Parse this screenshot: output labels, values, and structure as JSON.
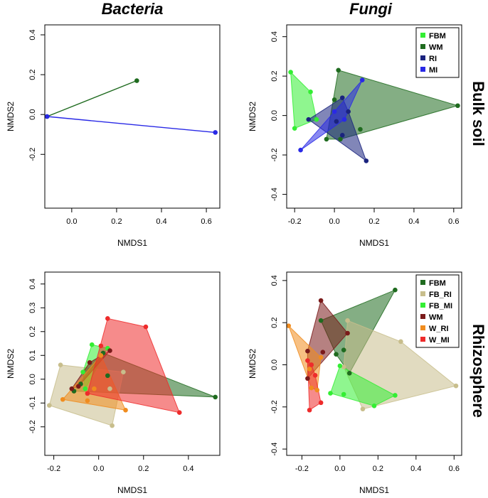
{
  "column_titles": [
    "Bacteria",
    "Fungi"
  ],
  "row_titles": [
    "Bulk soil",
    "Rhizosphere"
  ],
  "colors": {
    "FBM_bulk": "#33ee33",
    "WM_bulk": "#1f6b1f",
    "RI_bulk": "#1a237e",
    "MI_bulk": "#2929e6",
    "FBM": "#1f6b1f",
    "FB_RI": "#c8be8c",
    "FB_MI": "#33ee33",
    "WM": "#7a1a1a",
    "W_RI": "#f08c1e",
    "W_MI": "#ee2b2b"
  },
  "chart_data": [
    {
      "id": "bacteria-bulk",
      "type": "scatter",
      "title": "Bacteria",
      "row": "Bulk soil",
      "xlabel": "NMDS1",
      "ylabel": "NMDS2",
      "xlim": [
        -0.12,
        0.66
      ],
      "ylim": [
        -0.47,
        0.45
      ],
      "xticks": [
        0.0,
        0.2,
        0.4,
        0.6
      ],
      "xtick_labels": [
        "0.0",
        "0.2",
        "0.4",
        "0.6"
      ],
      "yticks": [
        -0.2,
        0.0,
        0.2,
        0.4
      ],
      "ytick_labels": [
        "-0.2",
        "0.0",
        "0.2",
        "0.4"
      ],
      "legend": null,
      "series": [
        {
          "name": "WM",
          "color_key": "WM_bulk",
          "points": [
            [
              -0.11,
              -0.01
            ],
            [
              0.29,
              0.17
            ]
          ]
        },
        {
          "name": "MI",
          "color_key": "MI_bulk",
          "points": [
            [
              -0.11,
              -0.01
            ],
            [
              0.64,
              -0.09
            ]
          ]
        }
      ]
    },
    {
      "id": "fungi-bulk",
      "type": "scatter",
      "title": "Fungi",
      "row": "Bulk soil",
      "xlabel": "NMDS1",
      "ylabel": "NMDS2",
      "xlim": [
        -0.24,
        0.64
      ],
      "ylim": [
        -0.47,
        0.46
      ],
      "xticks": [
        -0.2,
        0.0,
        0.2,
        0.4,
        0.6
      ],
      "xtick_labels": [
        "-0.2",
        "0.0",
        "0.2",
        "0.4",
        "0.6"
      ],
      "yticks": [
        -0.4,
        -0.2,
        0.0,
        0.2,
        0.4
      ],
      "ytick_labels": [
        "-0.4",
        "-0.2",
        "0.0",
        "0.2",
        "0.4"
      ],
      "legend": "top-right",
      "series": [
        {
          "name": "FBM",
          "color_key": "FBM_bulk",
          "points": [
            [
              -0.22,
              0.22
            ],
            [
              -0.12,
              0.12
            ],
            [
              -0.09,
              -0.02
            ],
            [
              -0.2,
              -0.065
            ]
          ]
        },
        {
          "name": "WM",
          "color_key": "WM_bulk",
          "points": [
            [
              0.02,
              0.23
            ],
            [
              0.62,
              0.05
            ],
            [
              0.13,
              -0.07
            ],
            [
              0.03,
              -0.12
            ],
            [
              -0.04,
              -0.12
            ],
            [
              0.0,
              0.08
            ]
          ]
        },
        {
          "name": "RI",
          "color_key": "RI_bulk",
          "points": [
            [
              -0.13,
              -0.02
            ],
            [
              0.04,
              0.09
            ],
            [
              0.16,
              -0.23
            ],
            [
              0.04,
              -0.1
            ],
            [
              0.01,
              -0.03
            ],
            [
              0.07,
              0.02
            ]
          ]
        },
        {
          "name": "MI",
          "color_key": "MI_bulk",
          "points": [
            [
              -0.17,
              -0.175
            ],
            [
              0.0,
              0.02
            ],
            [
              0.14,
              0.18
            ],
            [
              0.05,
              -0.02
            ]
          ]
        }
      ]
    },
    {
      "id": "bacteria-rhizo",
      "type": "scatter",
      "title": "Bacteria",
      "row": "Rhizosphere",
      "xlabel": "NMDS1",
      "ylabel": "NMDS2",
      "xlim": [
        -0.24,
        0.54
      ],
      "ylim": [
        -0.32,
        0.45
      ],
      "xticks": [
        -0.2,
        0.0,
        0.2,
        0.4
      ],
      "xtick_labels": [
        "-0.2",
        "0.0",
        "0.2",
        "0.4"
      ],
      "yticks": [
        -0.2,
        -0.1,
        0.0,
        0.1,
        0.2,
        0.3,
        0.4
      ],
      "ytick_labels": [
        "-0.2",
        "-0.1",
        "0.0",
        "0.1",
        "0.2",
        "0.3",
        "0.4"
      ],
      "legend": null,
      "series": [
        {
          "name": "FBM",
          "color_key": "FBM",
          "points": [
            [
              -0.11,
              -0.05
            ],
            [
              0.02,
              0.11
            ],
            [
              0.52,
              -0.075
            ],
            [
              0.04,
              0.015
            ],
            [
              -0.08,
              -0.02
            ]
          ]
        },
        {
          "name": "FB_RI",
          "color_key": "FB_RI",
          "points": [
            [
              -0.22,
              -0.11
            ],
            [
              -0.17,
              0.06
            ],
            [
              0.11,
              0.03
            ],
            [
              0.06,
              -0.195
            ],
            [
              0.05,
              -0.04
            ]
          ]
        },
        {
          "name": "FB_MI",
          "color_key": "FB_MI",
          "points": [
            [
              -0.03,
              0.145
            ],
            [
              0.04,
              0.13
            ],
            [
              -0.06,
              -0.04
            ],
            [
              -0.07,
              0.03
            ]
          ]
        },
        {
          "name": "WM",
          "color_key": "WM",
          "points": [
            [
              -0.12,
              -0.04
            ],
            [
              0.05,
              0.12
            ],
            [
              -0.04,
              0.07
            ],
            [
              -0.09,
              -0.03
            ]
          ]
        },
        {
          "name": "W_RI",
          "color_key": "W_RI",
          "points": [
            [
              -0.16,
              -0.085
            ],
            [
              0.01,
              0.1
            ],
            [
              0.12,
              -0.13
            ],
            [
              -0.05,
              -0.09
            ],
            [
              -0.02,
              -0.04
            ]
          ]
        },
        {
          "name": "W_MI",
          "color_key": "W_MI",
          "points": [
            [
              0.04,
              0.255
            ],
            [
              0.21,
              0.22
            ],
            [
              0.36,
              -0.14
            ],
            [
              -0.05,
              -0.06
            ],
            [
              0.01,
              0.14
            ]
          ]
        }
      ]
    },
    {
      "id": "fungi-rhizo",
      "type": "scatter",
      "title": "Fungi",
      "row": "Rhizosphere",
      "xlabel": "NMDS1",
      "ylabel": "NMDS2",
      "xlim": [
        -0.28,
        0.64
      ],
      "ylim": [
        -0.43,
        0.44
      ],
      "xticks": [
        -0.2,
        0.0,
        0.2,
        0.4,
        0.6
      ],
      "xtick_labels": [
        "-0.2",
        "0.0",
        "0.2",
        "0.4",
        "0.6"
      ],
      "yticks": [
        -0.4,
        -0.2,
        0.0,
        0.2,
        0.4
      ],
      "ytick_labels": [
        "-0.4",
        "-0.2",
        "0.0",
        "0.2",
        "0.4"
      ],
      "legend": "top-right",
      "series": [
        {
          "name": "FBM",
          "color_key": "FBM",
          "points": [
            [
              -0.1,
              0.21
            ],
            [
              0.29,
              0.355
            ],
            [
              0.05,
              -0.04
            ],
            [
              -0.02,
              0.05
            ],
            [
              0.02,
              0.07
            ]
          ]
        },
        {
          "name": "FB_RI",
          "color_key": "FB_RI",
          "points": [
            [
              0.04,
              0.21
            ],
            [
              0.32,
              0.11
            ],
            [
              0.61,
              -0.1
            ],
            [
              0.12,
              -0.21
            ],
            [
              0.02,
              -0.01
            ]
          ]
        },
        {
          "name": "FB_MI",
          "color_key": "FB_MI",
          "points": [
            [
              -0.05,
              -0.135
            ],
            [
              0.0,
              -0.005
            ],
            [
              0.29,
              -0.145
            ],
            [
              0.18,
              -0.195
            ],
            [
              0.02,
              -0.14
            ]
          ]
        },
        {
          "name": "WM",
          "color_key": "WM",
          "points": [
            [
              -0.17,
              0.065
            ],
            [
              -0.1,
              0.305
            ],
            [
              0.04,
              0.15
            ],
            [
              -0.17,
              -0.065
            ],
            [
              -0.09,
              0.06
            ]
          ]
        },
        {
          "name": "W_RI",
          "color_key": "W_RI",
          "points": [
            [
              -0.27,
              0.185
            ],
            [
              -0.1,
              0.035
            ],
            [
              -0.12,
              -0.12
            ],
            [
              -0.15,
              -0.11
            ],
            [
              -0.16,
              -0.02
            ]
          ]
        },
        {
          "name": "W_MI",
          "color_key": "W_MI",
          "points": [
            [
              -0.16,
              -0.215
            ],
            [
              -0.1,
              -0.18
            ],
            [
              -0.13,
              -0.05
            ],
            [
              -0.17,
              0.02
            ],
            [
              -0.15,
              0.0
            ]
          ]
        }
      ]
    }
  ]
}
